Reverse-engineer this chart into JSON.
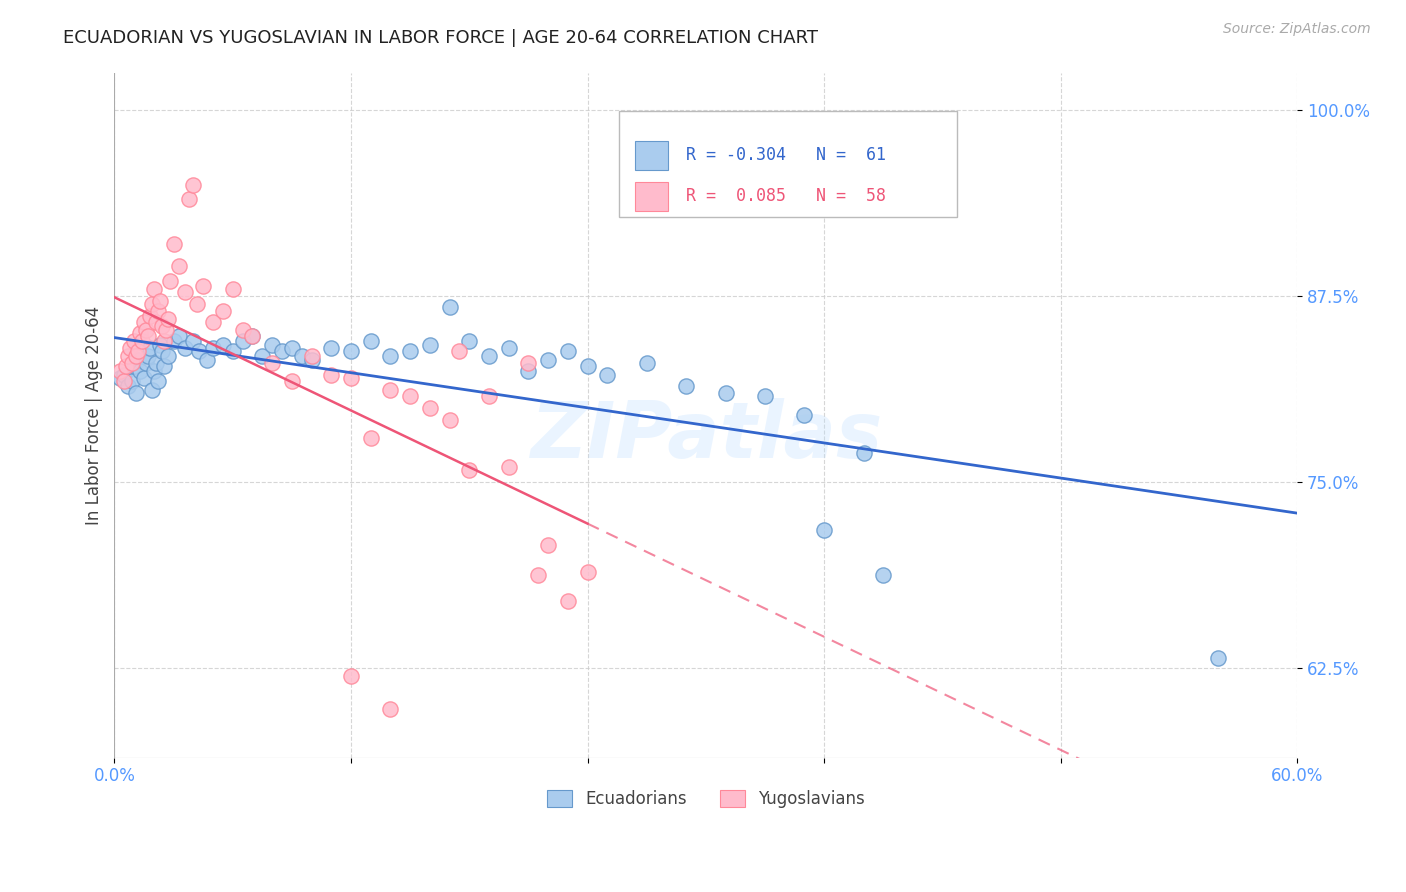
{
  "title": "ECUADORIAN VS YUGOSLAVIAN IN LABOR FORCE | AGE 20-64 CORRELATION CHART",
  "source": "Source: ZipAtlas.com",
  "ylabel": "In Labor Force | Age 20-64",
  "ytick_labels": [
    "100.0%",
    "87.5%",
    "75.0%",
    "62.5%"
  ],
  "ytick_values": [
    1.0,
    0.875,
    0.75,
    0.625
  ],
  "xlim": [
    0.0,
    0.6
  ],
  "ylim": [
    0.565,
    1.025
  ],
  "legend_r_blue": "-0.304",
  "legend_n_blue": "61",
  "legend_r_pink": "0.085",
  "legend_n_pink": "58",
  "blue_color": "#aaccee",
  "blue_edge_color": "#6699cc",
  "pink_color": "#ffbbcc",
  "pink_edge_color": "#ff8899",
  "trend_blue_color": "#3366cc",
  "trend_pink_color": "#ee5577",
  "watermark": "ZIPatlas",
  "blue_points": [
    [
      0.003,
      0.82
    ],
    [
      0.005,
      0.822
    ],
    [
      0.007,
      0.815
    ],
    [
      0.009,
      0.818
    ],
    [
      0.01,
      0.828
    ],
    [
      0.011,
      0.81
    ],
    [
      0.012,
      0.832
    ],
    [
      0.013,
      0.825
    ],
    [
      0.015,
      0.82
    ],
    [
      0.016,
      0.83
    ],
    [
      0.017,
      0.835
    ],
    [
      0.018,
      0.84
    ],
    [
      0.019,
      0.812
    ],
    [
      0.02,
      0.825
    ],
    [
      0.021,
      0.83
    ],
    [
      0.022,
      0.818
    ],
    [
      0.023,
      0.842
    ],
    [
      0.024,
      0.838
    ],
    [
      0.025,
      0.828
    ],
    [
      0.027,
      0.835
    ],
    [
      0.03,
      0.845
    ],
    [
      0.033,
      0.848
    ],
    [
      0.036,
      0.84
    ],
    [
      0.04,
      0.845
    ],
    [
      0.043,
      0.838
    ],
    [
      0.047,
      0.832
    ],
    [
      0.05,
      0.84
    ],
    [
      0.055,
      0.842
    ],
    [
      0.06,
      0.838
    ],
    [
      0.065,
      0.845
    ],
    [
      0.07,
      0.848
    ],
    [
      0.075,
      0.835
    ],
    [
      0.08,
      0.842
    ],
    [
      0.085,
      0.838
    ],
    [
      0.09,
      0.84
    ],
    [
      0.095,
      0.835
    ],
    [
      0.1,
      0.832
    ],
    [
      0.11,
      0.84
    ],
    [
      0.12,
      0.838
    ],
    [
      0.13,
      0.845
    ],
    [
      0.14,
      0.835
    ],
    [
      0.15,
      0.838
    ],
    [
      0.16,
      0.842
    ],
    [
      0.17,
      0.868
    ],
    [
      0.18,
      0.845
    ],
    [
      0.19,
      0.835
    ],
    [
      0.2,
      0.84
    ],
    [
      0.21,
      0.825
    ],
    [
      0.22,
      0.832
    ],
    [
      0.23,
      0.838
    ],
    [
      0.24,
      0.828
    ],
    [
      0.25,
      0.822
    ],
    [
      0.27,
      0.83
    ],
    [
      0.29,
      0.815
    ],
    [
      0.31,
      0.81
    ],
    [
      0.33,
      0.808
    ],
    [
      0.35,
      0.795
    ],
    [
      0.36,
      0.718
    ],
    [
      0.38,
      0.77
    ],
    [
      0.39,
      0.688
    ],
    [
      0.56,
      0.632
    ]
  ],
  "pink_points": [
    [
      0.003,
      0.825
    ],
    [
      0.005,
      0.818
    ],
    [
      0.006,
      0.828
    ],
    [
      0.007,
      0.835
    ],
    [
      0.008,
      0.84
    ],
    [
      0.009,
      0.83
    ],
    [
      0.01,
      0.845
    ],
    [
      0.011,
      0.835
    ],
    [
      0.012,
      0.838
    ],
    [
      0.013,
      0.85
    ],
    [
      0.014,
      0.845
    ],
    [
      0.015,
      0.858
    ],
    [
      0.016,
      0.852
    ],
    [
      0.017,
      0.848
    ],
    [
      0.018,
      0.862
    ],
    [
      0.019,
      0.87
    ],
    [
      0.02,
      0.88
    ],
    [
      0.021,
      0.858
    ],
    [
      0.022,
      0.865
    ],
    [
      0.023,
      0.872
    ],
    [
      0.024,
      0.855
    ],
    [
      0.025,
      0.845
    ],
    [
      0.026,
      0.852
    ],
    [
      0.027,
      0.86
    ],
    [
      0.028,
      0.885
    ],
    [
      0.03,
      0.91
    ],
    [
      0.033,
      0.895
    ],
    [
      0.036,
      0.878
    ],
    [
      0.038,
      0.94
    ],
    [
      0.04,
      0.95
    ],
    [
      0.042,
      0.87
    ],
    [
      0.045,
      0.882
    ],
    [
      0.05,
      0.858
    ],
    [
      0.055,
      0.865
    ],
    [
      0.06,
      0.88
    ],
    [
      0.065,
      0.852
    ],
    [
      0.07,
      0.848
    ],
    [
      0.08,
      0.83
    ],
    [
      0.09,
      0.818
    ],
    [
      0.1,
      0.835
    ],
    [
      0.11,
      0.822
    ],
    [
      0.12,
      0.82
    ],
    [
      0.13,
      0.78
    ],
    [
      0.14,
      0.812
    ],
    [
      0.15,
      0.808
    ],
    [
      0.16,
      0.8
    ],
    [
      0.17,
      0.792
    ],
    [
      0.175,
      0.838
    ],
    [
      0.18,
      0.758
    ],
    [
      0.19,
      0.808
    ],
    [
      0.2,
      0.76
    ],
    [
      0.21,
      0.83
    ],
    [
      0.215,
      0.688
    ],
    [
      0.22,
      0.708
    ],
    [
      0.23,
      0.67
    ],
    [
      0.24,
      0.69
    ],
    [
      0.12,
      0.62
    ],
    [
      0.14,
      0.598
    ]
  ]
}
